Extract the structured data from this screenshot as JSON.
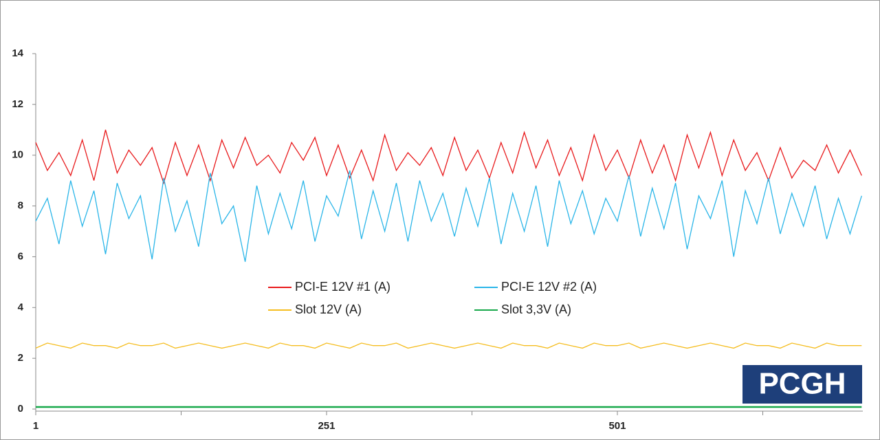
{
  "chart_data": {
    "type": "line",
    "x": [
      1,
      11,
      21,
      31,
      41,
      51,
      61,
      71,
      81,
      91,
      101,
      111,
      121,
      131,
      141,
      151,
      161,
      171,
      181,
      191,
      201,
      211,
      221,
      231,
      241,
      251,
      261,
      271,
      281,
      291,
      301,
      311,
      321,
      331,
      341,
      351,
      361,
      371,
      381,
      391,
      401,
      411,
      421,
      431,
      441,
      451,
      461,
      471,
      481,
      491,
      501,
      511,
      521,
      531,
      541,
      551,
      561,
      571,
      581,
      591,
      601,
      611,
      621,
      631,
      641,
      651,
      661,
      671,
      681,
      691,
      701,
      711
    ],
    "series": [
      {
        "name": "PCI-E 12V #1 (A)",
        "color": "#e8191b",
        "values": [
          10.5,
          9.4,
          10.1,
          9.2,
          10.6,
          9.0,
          11.0,
          9.3,
          10.2,
          9.6,
          10.3,
          8.9,
          10.5,
          9.2,
          10.4,
          9.0,
          10.6,
          9.5,
          10.7,
          9.6,
          10.0,
          9.3,
          10.5,
          9.8,
          10.7,
          9.2,
          10.4,
          9.1,
          10.2,
          9.0,
          10.8,
          9.4,
          10.1,
          9.6,
          10.3,
          9.2,
          10.7,
          9.4,
          10.2,
          9.1,
          10.5,
          9.3,
          10.9,
          9.5,
          10.6,
          9.2,
          10.3,
          9.0,
          10.8,
          9.4,
          10.2,
          9.1,
          10.6,
          9.3,
          10.4,
          9.0,
          10.8,
          9.5,
          10.9,
          9.2,
          10.6,
          9.4,
          10.1,
          9.0,
          10.3,
          9.1,
          9.8,
          9.4,
          10.4,
          9.3,
          10.2,
          9.2
        ]
      },
      {
        "name": "PCI-E 12V #2 (A)",
        "color": "#29b5e8",
        "values": [
          7.4,
          8.3,
          6.5,
          9.0,
          7.2,
          8.6,
          6.1,
          8.9,
          7.5,
          8.4,
          5.9,
          9.1,
          7.0,
          8.2,
          6.4,
          9.3,
          7.3,
          8.0,
          5.8,
          8.8,
          6.9,
          8.5,
          7.1,
          9.0,
          6.6,
          8.4,
          7.6,
          9.4,
          6.7,
          8.6,
          7.0,
          8.9,
          6.6,
          9.0,
          7.4,
          8.5,
          6.8,
          8.7,
          7.2,
          9.1,
          6.5,
          8.5,
          7.0,
          8.8,
          6.4,
          9.0,
          7.3,
          8.6,
          6.9,
          8.3,
          7.4,
          9.2,
          6.8,
          8.7,
          7.1,
          8.9,
          6.3,
          8.4,
          7.5,
          9.0,
          6.0,
          8.6,
          7.3,
          9.1,
          6.9,
          8.5,
          7.2,
          8.8,
          6.7,
          8.3,
          6.9,
          8.4
        ]
      },
      {
        "name": "Slot 12V (A)",
        "color": "#f5bd1f",
        "values": [
          2.4,
          2.6,
          2.5,
          2.4,
          2.6,
          2.5,
          2.5,
          2.4,
          2.6,
          2.5,
          2.5,
          2.6,
          2.4,
          2.5,
          2.6,
          2.5,
          2.4,
          2.5,
          2.6,
          2.5,
          2.4,
          2.6,
          2.5,
          2.5,
          2.4,
          2.6,
          2.5,
          2.4,
          2.6,
          2.5,
          2.5,
          2.6,
          2.4,
          2.5,
          2.6,
          2.5,
          2.4,
          2.5,
          2.6,
          2.5,
          2.4,
          2.6,
          2.5,
          2.5,
          2.4,
          2.6,
          2.5,
          2.4,
          2.6,
          2.5,
          2.5,
          2.6,
          2.4,
          2.5,
          2.6,
          2.5,
          2.4,
          2.5,
          2.6,
          2.5,
          2.4,
          2.6,
          2.5,
          2.5,
          2.4,
          2.6,
          2.5,
          2.4,
          2.6,
          2.5,
          2.5,
          2.5
        ]
      },
      {
        "name": "Slot 3,3V (A)",
        "color": "#16a84a",
        "values": [
          0.08,
          0.08,
          0.08,
          0.08,
          0.08,
          0.08,
          0.08,
          0.08,
          0.08,
          0.08,
          0.08,
          0.08,
          0.08,
          0.08,
          0.08,
          0.08,
          0.08,
          0.08,
          0.08,
          0.08,
          0.08,
          0.08,
          0.08,
          0.08,
          0.08,
          0.08,
          0.08,
          0.08,
          0.08,
          0.08,
          0.08,
          0.08,
          0.08,
          0.08,
          0.08,
          0.08,
          0.08,
          0.08,
          0.08,
          0.08,
          0.08,
          0.08,
          0.08,
          0.08,
          0.08,
          0.08,
          0.08,
          0.08,
          0.08,
          0.08,
          0.08,
          0.08,
          0.08,
          0.08,
          0.08,
          0.08,
          0.08,
          0.08,
          0.08,
          0.08,
          0.08,
          0.08,
          0.08,
          0.08,
          0.08,
          0.08,
          0.08,
          0.08,
          0.08,
          0.08,
          0.08,
          0.08
        ]
      }
    ],
    "xlim": [
      1,
      712
    ],
    "xticks": [
      1,
      251,
      501
    ],
    "xminorticks": [
      126,
      376,
      626
    ],
    "ylim": [
      0,
      14
    ],
    "yticks": [
      0,
      2,
      4,
      6,
      8,
      10,
      12,
      14
    ],
    "legend": "center",
    "logo": "PCGH"
  }
}
